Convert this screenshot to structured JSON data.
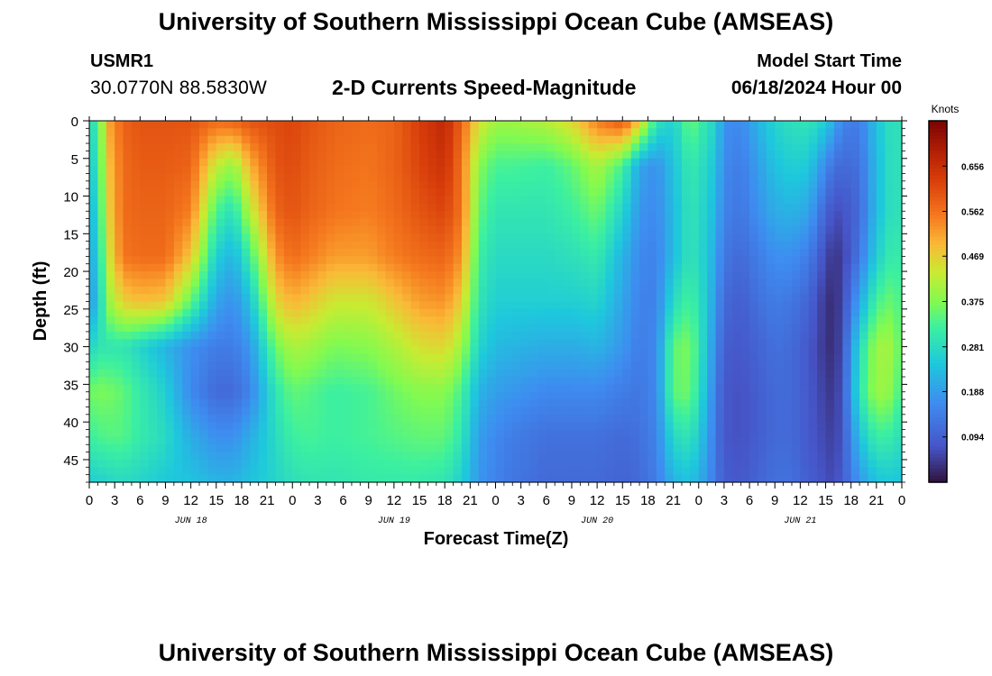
{
  "header": {
    "title": "University of Southern Mississippi Ocean Cube (AMSEAS)",
    "station_id": "USMR1",
    "station_coords": "30.0770N  88.5830W",
    "plot_title": "2-D Currents Speed-Magnitude",
    "model_start_label": "Model Start Time",
    "model_start_value": "06/18/2024 Hour 00"
  },
  "footer": {
    "title": "University of Southern Mississippi Ocean Cube (AMSEAS)"
  },
  "chart_data": {
    "type": "heatmap",
    "title": "2-D Currents Speed-Magnitude",
    "xlabel": "Forecast Time(Z)",
    "ylabel": "Depth (ft)",
    "xlim": [
      0,
      96
    ],
    "ylim": [
      0,
      48
    ],
    "x_unit": "hours since 06/18/2024 00Z",
    "x_tick_labels": [
      "0",
      "3",
      "6",
      "9",
      "12",
      "15",
      "18",
      "21",
      "0",
      "3",
      "6",
      "9",
      "12",
      "15",
      "18",
      "21",
      "0",
      "3",
      "6",
      "9",
      "12",
      "15",
      "18",
      "21",
      "0",
      "3",
      "6",
      "9",
      "12",
      "15",
      "18",
      "21",
      "0"
    ],
    "y_ticks": [
      0,
      5,
      10,
      15,
      20,
      25,
      30,
      35,
      40,
      45
    ],
    "y_tick_labels": [
      "0",
      "5",
      "10",
      "15",
      "20",
      "25",
      "30",
      "35",
      "40",
      "45"
    ],
    "day_labels": [
      {
        "label": "JUN 18",
        "hour": 12
      },
      {
        "label": "JUN 19",
        "hour": 36
      },
      {
        "label": "JUN 20",
        "hour": 60
      },
      {
        "label": "JUN 21",
        "hour": 84
      }
    ],
    "colorbar": {
      "unit": "Knots",
      "min": 0,
      "max": 0.75,
      "tick_values": [
        0.094,
        0.188,
        0.281,
        0.375,
        0.469,
        0.562,
        0.656
      ],
      "tick_labels": [
        "0.094",
        "0.188",
        "0.281",
        "0.375",
        "0.469",
        "0.562",
        "0.656"
      ]
    },
    "depths_ft": [
      0,
      6,
      12,
      18,
      24,
      30,
      36,
      42,
      48
    ],
    "times_h": [
      0,
      1,
      2,
      4,
      6,
      9,
      12,
      15,
      17,
      19,
      22,
      24,
      26,
      29,
      33,
      36,
      39,
      42,
      44,
      46,
      48,
      50,
      54,
      57,
      60,
      63,
      65,
      67,
      69,
      71,
      73,
      74,
      75,
      77,
      79,
      81,
      83,
      85,
      87,
      88,
      89,
      91,
      93,
      95,
      96
    ],
    "speed_knots": [
      [
        0.3,
        0.3,
        0.5,
        0.58,
        0.6,
        0.6,
        0.6,
        0.57,
        0.58,
        0.6,
        0.61,
        0.62,
        0.6,
        0.58,
        0.57,
        0.58,
        0.63,
        0.67,
        0.58,
        0.45,
        0.4,
        0.4,
        0.42,
        0.46,
        0.55,
        0.6,
        0.48,
        0.3,
        0.26,
        0.36,
        0.29,
        0.27,
        0.17,
        0.16,
        0.22,
        0.27,
        0.29,
        0.3,
        0.26,
        0.21,
        0.15,
        0.14,
        0.24,
        0.3,
        0.28
      ],
      [
        0.27,
        0.28,
        0.47,
        0.57,
        0.59,
        0.59,
        0.58,
        0.43,
        0.39,
        0.5,
        0.6,
        0.61,
        0.59,
        0.57,
        0.56,
        0.58,
        0.62,
        0.65,
        0.56,
        0.38,
        0.33,
        0.33,
        0.32,
        0.35,
        0.41,
        0.33,
        0.2,
        0.17,
        0.24,
        0.31,
        0.27,
        0.24,
        0.16,
        0.14,
        0.19,
        0.24,
        0.26,
        0.25,
        0.16,
        0.12,
        0.11,
        0.12,
        0.23,
        0.3,
        0.28
      ],
      [
        0.24,
        0.26,
        0.45,
        0.57,
        0.58,
        0.58,
        0.55,
        0.33,
        0.29,
        0.42,
        0.58,
        0.6,
        0.58,
        0.56,
        0.55,
        0.57,
        0.6,
        0.62,
        0.56,
        0.35,
        0.3,
        0.3,
        0.3,
        0.32,
        0.36,
        0.27,
        0.18,
        0.16,
        0.23,
        0.3,
        0.26,
        0.22,
        0.15,
        0.13,
        0.17,
        0.21,
        0.22,
        0.2,
        0.1,
        0.07,
        0.07,
        0.11,
        0.23,
        0.3,
        0.28
      ],
      [
        0.22,
        0.24,
        0.42,
        0.56,
        0.57,
        0.57,
        0.48,
        0.26,
        0.22,
        0.32,
        0.53,
        0.57,
        0.55,
        0.52,
        0.52,
        0.55,
        0.57,
        0.58,
        0.53,
        0.32,
        0.28,
        0.28,
        0.28,
        0.29,
        0.31,
        0.22,
        0.16,
        0.15,
        0.23,
        0.3,
        0.25,
        0.2,
        0.13,
        0.11,
        0.14,
        0.17,
        0.17,
        0.14,
        0.06,
        0.04,
        0.05,
        0.13,
        0.26,
        0.32,
        0.3
      ],
      [
        0.2,
        0.22,
        0.38,
        0.47,
        0.49,
        0.48,
        0.35,
        0.2,
        0.17,
        0.24,
        0.46,
        0.5,
        0.48,
        0.44,
        0.44,
        0.48,
        0.52,
        0.53,
        0.47,
        0.3,
        0.26,
        0.26,
        0.26,
        0.26,
        0.27,
        0.2,
        0.15,
        0.15,
        0.28,
        0.33,
        0.25,
        0.18,
        0.11,
        0.09,
        0.12,
        0.14,
        0.13,
        0.1,
        0.04,
        0.03,
        0.06,
        0.2,
        0.33,
        0.36,
        0.32
      ],
      [
        0.26,
        0.3,
        0.3,
        0.3,
        0.27,
        0.22,
        0.17,
        0.14,
        0.14,
        0.18,
        0.36,
        0.41,
        0.4,
        0.37,
        0.38,
        0.41,
        0.45,
        0.46,
        0.4,
        0.27,
        0.23,
        0.22,
        0.21,
        0.21,
        0.22,
        0.18,
        0.14,
        0.16,
        0.35,
        0.37,
        0.24,
        0.16,
        0.09,
        0.08,
        0.1,
        0.12,
        0.11,
        0.08,
        0.04,
        0.03,
        0.07,
        0.28,
        0.4,
        0.4,
        0.33
      ],
      [
        0.36,
        0.37,
        0.37,
        0.35,
        0.31,
        0.26,
        0.16,
        0.11,
        0.11,
        0.15,
        0.3,
        0.35,
        0.34,
        0.32,
        0.33,
        0.36,
        0.38,
        0.38,
        0.33,
        0.22,
        0.19,
        0.18,
        0.16,
        0.16,
        0.16,
        0.14,
        0.13,
        0.16,
        0.35,
        0.36,
        0.22,
        0.14,
        0.08,
        0.07,
        0.09,
        0.11,
        0.11,
        0.08,
        0.05,
        0.04,
        0.08,
        0.3,
        0.4,
        0.38,
        0.31
      ],
      [
        0.32,
        0.33,
        0.34,
        0.34,
        0.31,
        0.28,
        0.21,
        0.17,
        0.17,
        0.21,
        0.28,
        0.32,
        0.33,
        0.32,
        0.33,
        0.34,
        0.35,
        0.35,
        0.3,
        0.19,
        0.16,
        0.14,
        0.12,
        0.12,
        0.12,
        0.11,
        0.12,
        0.15,
        0.28,
        0.3,
        0.2,
        0.13,
        0.08,
        0.07,
        0.09,
        0.11,
        0.11,
        0.08,
        0.06,
        0.05,
        0.08,
        0.24,
        0.32,
        0.31,
        0.28
      ],
      [
        0.26,
        0.26,
        0.27,
        0.28,
        0.27,
        0.25,
        0.24,
        0.22,
        0.22,
        0.24,
        0.27,
        0.29,
        0.3,
        0.3,
        0.31,
        0.31,
        0.31,
        0.3,
        0.26,
        0.18,
        0.15,
        0.13,
        0.11,
        0.11,
        0.11,
        0.1,
        0.11,
        0.14,
        0.22,
        0.24,
        0.18,
        0.13,
        0.09,
        0.08,
        0.1,
        0.12,
        0.12,
        0.09,
        0.07,
        0.06,
        0.09,
        0.18,
        0.24,
        0.25,
        0.24
      ]
    ]
  }
}
